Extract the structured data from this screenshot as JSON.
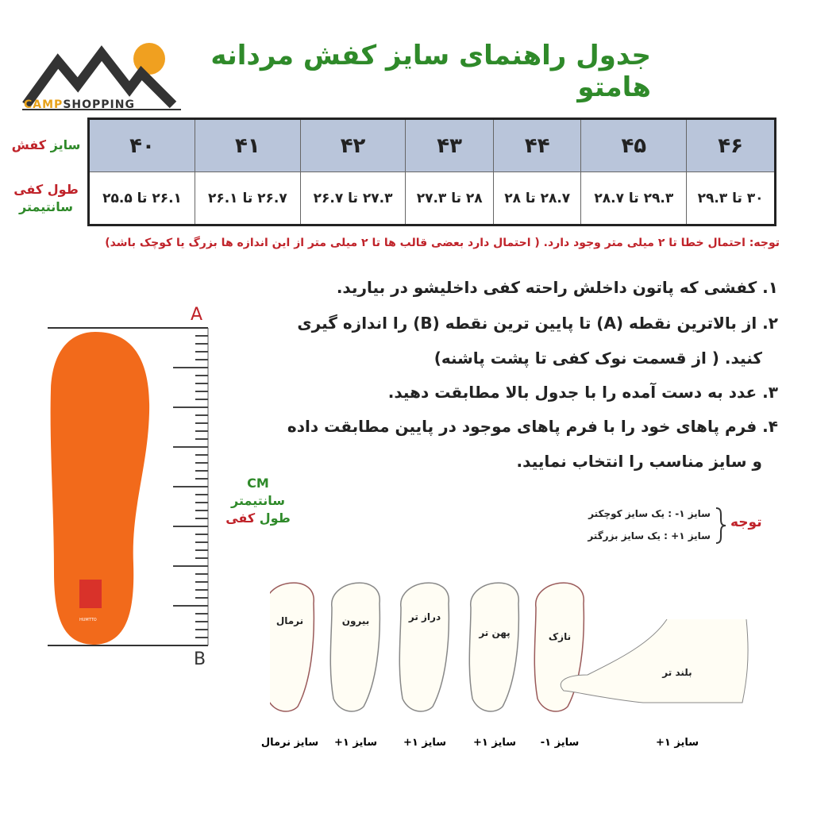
{
  "logo": {
    "brand_a": "CAMP",
    "brand_b": "SHOPPING"
  },
  "title": "جدول راهنمای سایز کفش مردانه هامتو",
  "row_labels": {
    "size_a": "سایز",
    "size_b": "کفش",
    "length_a": "طول کفی",
    "length_b": "سانتیمتر"
  },
  "table": {
    "sizes": [
      "۴۶",
      "۴۵",
      "۴۴",
      "۴۳",
      "۴۲",
      "۴۱",
      "۴۰"
    ],
    "lengths": [
      "۳۰ تا ۲۹.۳",
      "۲۹.۳ تا ۲۸.۷",
      "۲۸.۷ تا ۲۸",
      "۲۸ تا ۲۷.۳",
      "۲۷.۳ تا ۲۶.۷",
      "۲۶.۷ تا ۲۶.۱",
      "۲۶.۱ تا ۲۵.۵"
    ],
    "header_color": "#b9c5da"
  },
  "note": "توجه: احتمال خطا تا ۲ میلی متر وجود دارد. ( احتمال دارد بعضی قالب ها تا ۲ میلی متر از این اندازه ها بزرگ یا کوچک باشد)",
  "steps": [
    "۱. کفشی که پاتون داخلش راحته کفی داخلیشو در بیارید.",
    "۲. از بالاترین نقطه (A) تا پایین ترین نقطه (B) را اندازه گیری",
    "کنید. ( از قسمت نوک کفی تا پشت پاشنه)",
    "۳. عدد به دست آمده را با جدول بالا مطابقت دهید.",
    "۴. فرم پاهای خود را با فرم پاهای موجود در پایین مطابقت داده",
    "و سایز مناسب را انتخاب نمایید."
  ],
  "ruler": {
    "top": "A",
    "bottom": "B",
    "unit": "CM",
    "unit_fa": "سانتیمتر",
    "label_a": "طول",
    "label_b": "کفی"
  },
  "insole_brand": "HUMTTO",
  "attention": {
    "label": "توجه",
    "minus": "سایز ۱- :  یک سایز کوچکتر",
    "plus": "سایز ۱+ :  یک سایز بزرگتر"
  },
  "feet": [
    {
      "type": "نرمال",
      "size": "سایز نرمال"
    },
    {
      "type": "بیرون",
      "size": "سایز ۱+"
    },
    {
      "type": "دراز تر",
      "size": "سایز ۱+"
    },
    {
      "type": "پهن تر",
      "size": "سایز ۱+"
    },
    {
      "type": "نازک",
      "size": "سایز ۱-"
    },
    {
      "type": "بلند تر",
      "size": "سایز ۱+"
    }
  ],
  "colors": {
    "title": "#2f8a2a",
    "red": "#c0232a",
    "insole": "#f26a1b"
  }
}
